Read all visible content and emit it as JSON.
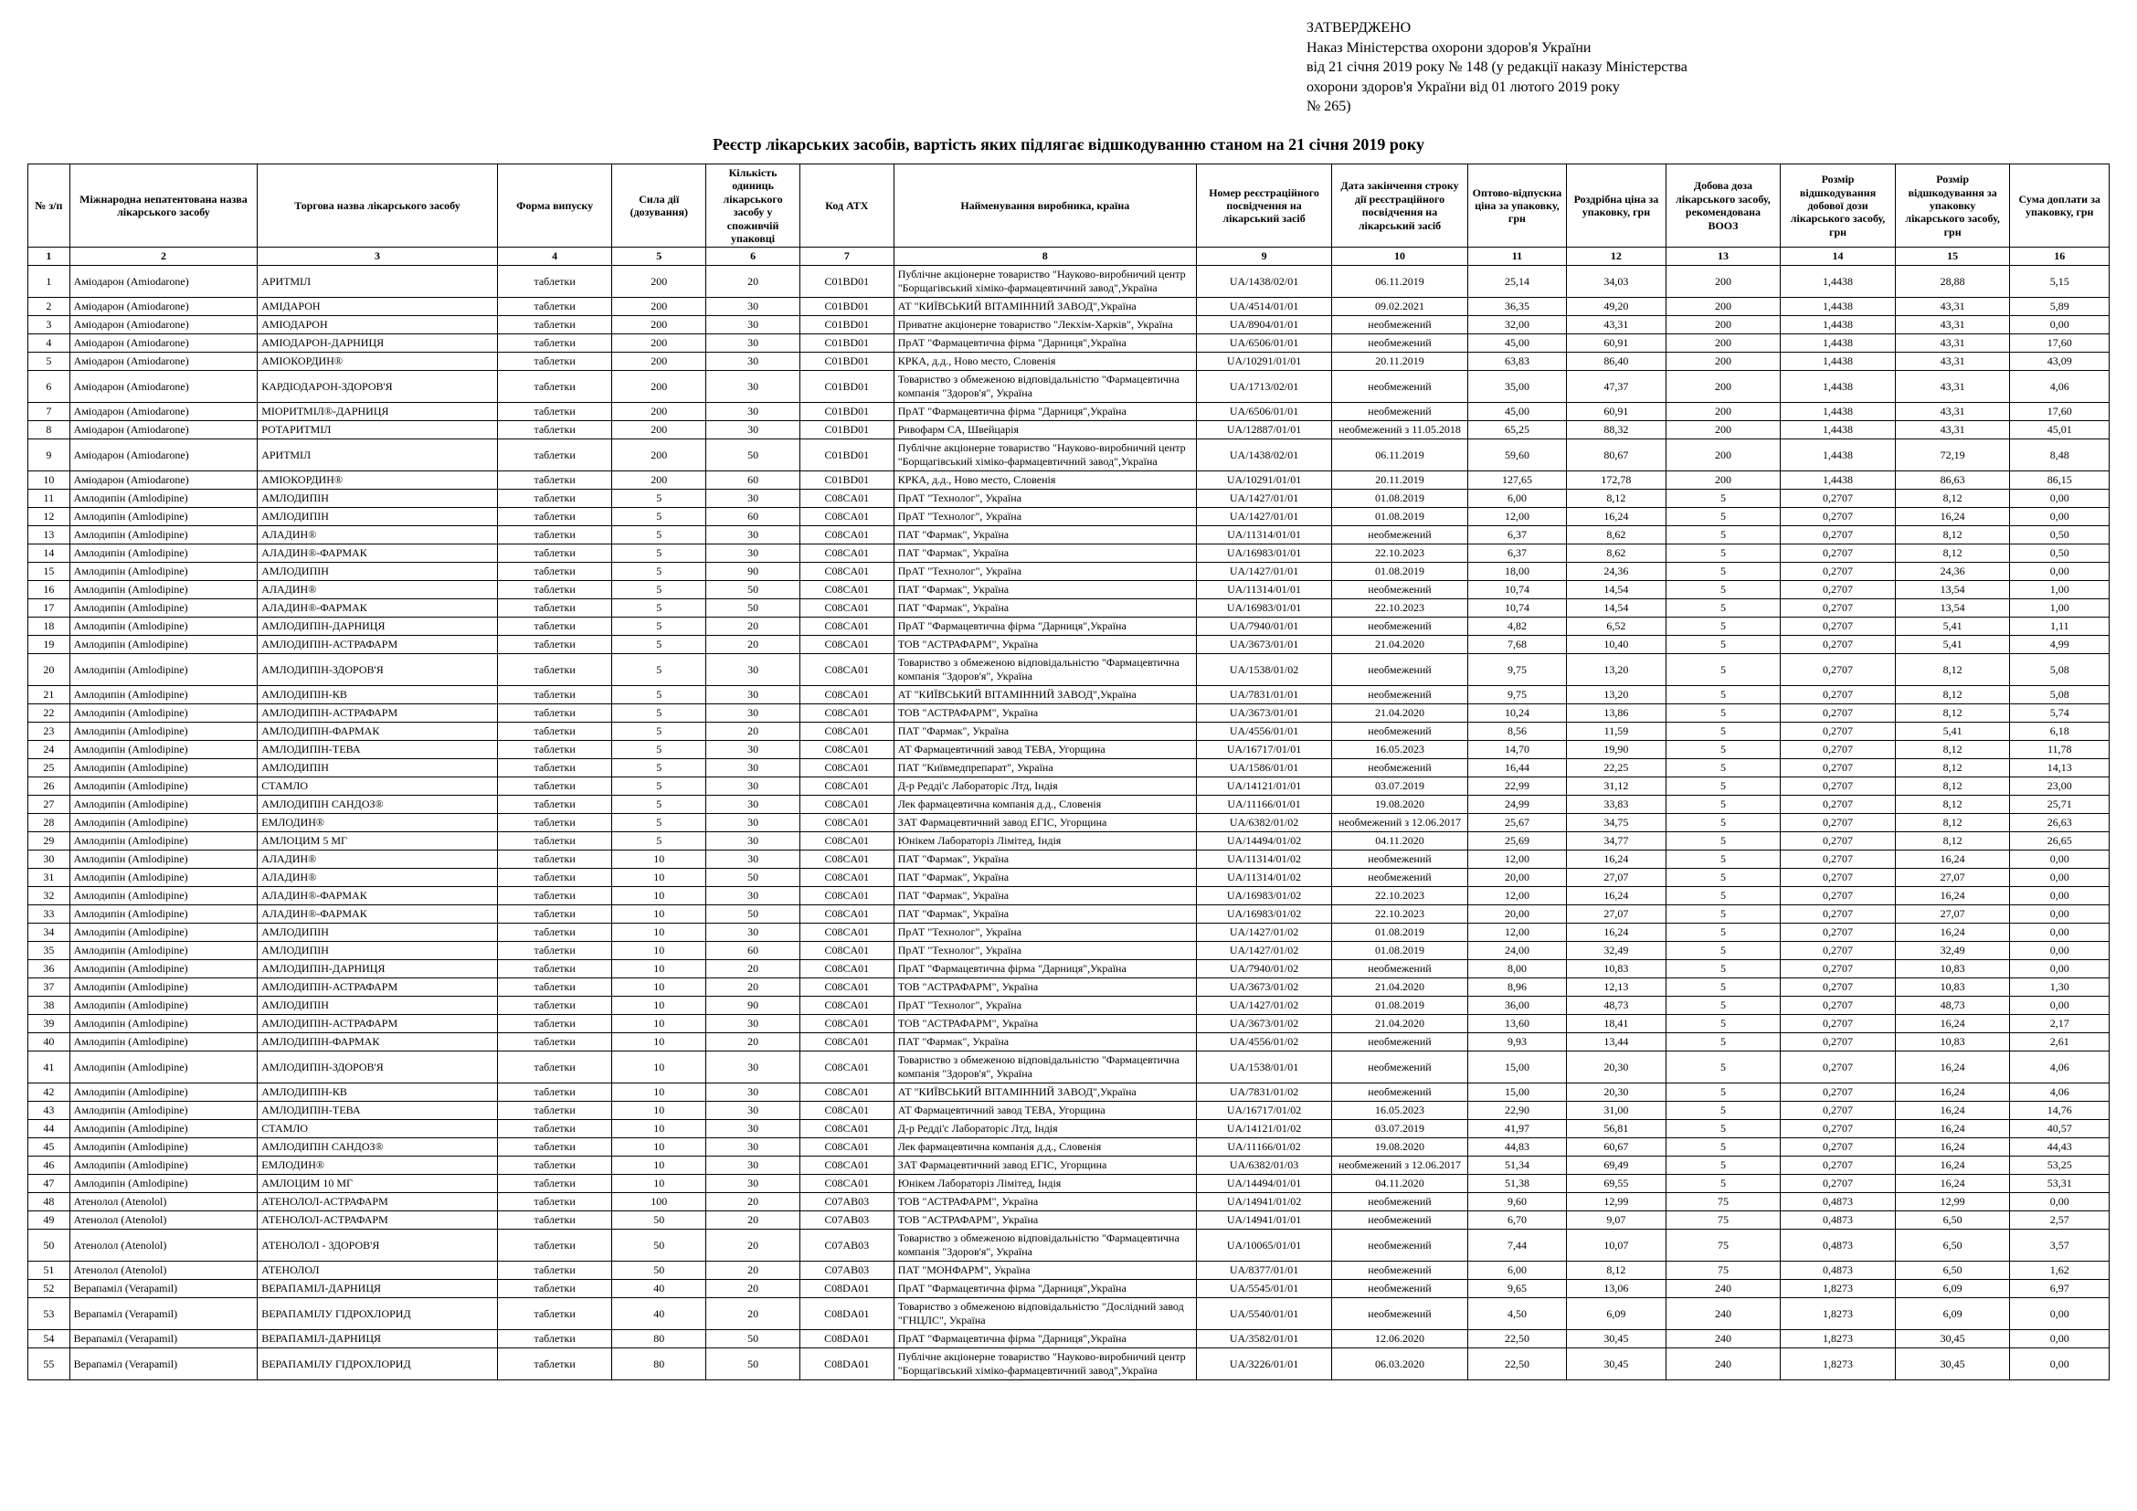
{
  "approval": {
    "approved": "ЗАТВЕРДЖЕНО",
    "line1": "Наказ Міністерства охорони здоров'я України",
    "line2": "від 21 січня 2019 року № 148 (у редакції наказу Міністерства",
    "line3": "охорони здоров'я України від 01 лютого 2019 року",
    "line4": "№ 265)"
  },
  "title": "Реєстр лікарських засобів, вартість яких підлягає відшкодуванню станом на 21 січня 2019 року",
  "headers": [
    "№ з/п",
    "Міжнародна непатентована назва лікарського засобу",
    "Торгова назва лікарського засобу",
    "Форма випуску",
    "Сила дії (дозування)",
    "Кількість одиниць лікарського засобу у споживчій упаковці",
    "Код АТХ",
    "Найменування виробника, країна",
    "Номер реєстраційного посвідчення на лікарський засіб",
    "Дата закінчення строку дії реєстраційного посвідчення на лікарський засіб",
    "Оптово-відпускна ціна за упаковку, грн",
    "Роздрібна ціна за упаковку, грн",
    "Добова доза лікарського засобу, рекомендована ВООЗ",
    "Розмір відшкодування добової дози лікарського засобу, грн",
    "Розмір відшкодування за упаковку лікарського засобу, грн",
    "Сума доплати за упаковку, грн"
  ],
  "colnums": [
    "1",
    "2",
    "3",
    "4",
    "5",
    "6",
    "7",
    "8",
    "9",
    "10",
    "11",
    "12",
    "13",
    "14",
    "15",
    "16"
  ],
  "rows": [
    [
      "1",
      "Аміодарон (Amiodarone)",
      "АРИТМІЛ",
      "таблетки",
      "200",
      "20",
      "C01BD01",
      "Публічне акціонерне товариство \"Науково-виробничий центр \"Борщагівський хіміко-фармацевтичний завод\",Україна",
      "UA/1438/02/01",
      "06.11.2019",
      "25,14",
      "34,03",
      "200",
      "1,4438",
      "28,88",
      "5,15"
    ],
    [
      "2",
      "Аміодарон (Amiodarone)",
      "АМІДАРОН",
      "таблетки",
      "200",
      "30",
      "C01BD01",
      "АТ \"КИЇВСЬКИЙ ВІТАМІННИЙ ЗАВОД\",Україна",
      "UA/4514/01/01",
      "09.02.2021",
      "36,35",
      "49,20",
      "200",
      "1,4438",
      "43,31",
      "5,89"
    ],
    [
      "3",
      "Аміодарон (Amiodarone)",
      "АМІОДАРОН",
      "таблетки",
      "200",
      "30",
      "C01BD01",
      "Приватне акціонерне товариство \"Лекхім-Харків\", Україна",
      "UA/8904/01/01",
      "необмежений",
      "32,00",
      "43,31",
      "200",
      "1,4438",
      "43,31",
      "0,00"
    ],
    [
      "4",
      "Аміодарон (Amiodarone)",
      "АМІОДАРОН-ДАРНИЦЯ",
      "таблетки",
      "200",
      "30",
      "C01BD01",
      "ПрАТ \"Фармацевтична фірма \"Дарниця\",Україна",
      "UA/6506/01/01",
      "необмежений",
      "45,00",
      "60,91",
      "200",
      "1,4438",
      "43,31",
      "17,60"
    ],
    [
      "5",
      "Аміодарон (Amiodarone)",
      "АМІОКОРДИН®",
      "таблетки",
      "200",
      "30",
      "C01BD01",
      "КРКА, д.д., Ново место, Словенія",
      "UA/10291/01/01",
      "20.11.2019",
      "63,83",
      "86,40",
      "200",
      "1,4438",
      "43,31",
      "43,09"
    ],
    [
      "6",
      "Аміодарон (Amiodarone)",
      "КАРДІОДАРОН-ЗДОРОВ'Я",
      "таблетки",
      "200",
      "30",
      "C01BD01",
      "Товариство з обмеженою відповідальністю \"Фармацевтична компанія \"Здоров'я\", Україна",
      "UA/1713/02/01",
      "необмежений",
      "35,00",
      "47,37",
      "200",
      "1,4438",
      "43,31",
      "4,06"
    ],
    [
      "7",
      "Аміодарон (Amiodarone)",
      "МІОРИТМІЛ®-ДАРНИЦЯ",
      "таблетки",
      "200",
      "30",
      "C01BD01",
      "ПрАТ \"Фармацевтична фірма \"Дарниця\",Україна",
      "UA/6506/01/01",
      "необмежений",
      "45,00",
      "60,91",
      "200",
      "1,4438",
      "43,31",
      "17,60"
    ],
    [
      "8",
      "Аміодарон (Amiodarone)",
      "РОТАРИТМІЛ",
      "таблетки",
      "200",
      "30",
      "C01BD01",
      "Ривофарм СА, Швейцарія",
      "UA/12887/01/01",
      "необмежений з 11.05.2018",
      "65,25",
      "88,32",
      "200",
      "1,4438",
      "43,31",
      "45,01"
    ],
    [
      "9",
      "Аміодарон (Amiodarone)",
      "АРИТМІЛ",
      "таблетки",
      "200",
      "50",
      "C01BD01",
      "Публічне акціонерне товариство \"Науково-виробничий центр \"Борщагівський хіміко-фармацевтичний завод\",Україна",
      "UA/1438/02/01",
      "06.11.2019",
      "59,60",
      "80,67",
      "200",
      "1,4438",
      "72,19",
      "8,48"
    ],
    [
      "10",
      "Аміодарон (Amiodarone)",
      "АМІОКОРДИН®",
      "таблетки",
      "200",
      "60",
      "C01BD01",
      "КРКА, д.д., Ново место, Словенія",
      "UA/10291/01/01",
      "20.11.2019",
      "127,65",
      "172,78",
      "200",
      "1,4438",
      "86,63",
      "86,15"
    ],
    [
      "11",
      "Амлодипін (Amlodipine)",
      "АМЛОДИПІН",
      "таблетки",
      "5",
      "30",
      "C08CA01",
      "ПрАТ \"Технолог\", Україна",
      "UA/1427/01/01",
      "01.08.2019",
      "6,00",
      "8,12",
      "5",
      "0,2707",
      "8,12",
      "0,00"
    ],
    [
      "12",
      "Амлодипін (Amlodipine)",
      "АМЛОДИПІН",
      "таблетки",
      "5",
      "60",
      "C08CA01",
      "ПрАТ \"Технолог\", Україна",
      "UA/1427/01/01",
      "01.08.2019",
      "12,00",
      "16,24",
      "5",
      "0,2707",
      "16,24",
      "0,00"
    ],
    [
      "13",
      "Амлодипін (Amlodipine)",
      "АЛАДИН®",
      "таблетки",
      "5",
      "30",
      "C08CA01",
      "ПАТ \"Фармак\", Україна",
      "UA/11314/01/01",
      "необмежений",
      "6,37",
      "8,62",
      "5",
      "0,2707",
      "8,12",
      "0,50"
    ],
    [
      "14",
      "Амлодипін (Amlodipine)",
      "АЛАДИН®-ФАРМАК",
      "таблетки",
      "5",
      "30",
      "C08CA01",
      "ПАТ \"Фармак\", Україна",
      "UA/16983/01/01",
      "22.10.2023",
      "6,37",
      "8,62",
      "5",
      "0,2707",
      "8,12",
      "0,50"
    ],
    [
      "15",
      "Амлодипін (Amlodipine)",
      "АМЛОДИПІН",
      "таблетки",
      "5",
      "90",
      "C08CA01",
      "ПрАТ \"Технолог\", Україна",
      "UA/1427/01/01",
      "01.08.2019",
      "18,00",
      "24,36",
      "5",
      "0,2707",
      "24,36",
      "0,00"
    ],
    [
      "16",
      "Амлодипін (Amlodipine)",
      "АЛАДИН®",
      "таблетки",
      "5",
      "50",
      "C08CA01",
      "ПАТ \"Фармак\", Україна",
      "UA/11314/01/01",
      "необмежений",
      "10,74",
      "14,54",
      "5",
      "0,2707",
      "13,54",
      "1,00"
    ],
    [
      "17",
      "Амлодипін (Amlodipine)",
      "АЛАДИН®-ФАРМАК",
      "таблетки",
      "5",
      "50",
      "C08CA01",
      "ПАТ \"Фармак\", Україна",
      "UA/16983/01/01",
      "22.10.2023",
      "10,74",
      "14,54",
      "5",
      "0,2707",
      "13,54",
      "1,00"
    ],
    [
      "18",
      "Амлодипін (Amlodipine)",
      "АМЛОДИПІН-ДАРНИЦЯ",
      "таблетки",
      "5",
      "20",
      "C08CA01",
      "ПрАТ \"Фармацевтична фірма \"Дарниця\",Україна",
      "UA/7940/01/01",
      "необмежений",
      "4,82",
      "6,52",
      "5",
      "0,2707",
      "5,41",
      "1,11"
    ],
    [
      "19",
      "Амлодипін (Amlodipine)",
      "АМЛОДИПІН-АСТРАФАРМ",
      "таблетки",
      "5",
      "20",
      "C08CA01",
      "ТОВ \"АСТРАФАРМ\", Україна",
      "UA/3673/01/01",
      "21.04.2020",
      "7,68",
      "10,40",
      "5",
      "0,2707",
      "5,41",
      "4,99"
    ],
    [
      "20",
      "Амлодипін (Amlodipine)",
      "АМЛОДИПІН-ЗДОРОВ'Я",
      "таблетки",
      "5",
      "30",
      "C08CA01",
      "Товариство з обмеженою відповідальністю \"Фармацевтична компанія \"Здоров'я\", Україна",
      "UA/1538/01/02",
      "необмежений",
      "9,75",
      "13,20",
      "5",
      "0,2707",
      "8,12",
      "5,08"
    ],
    [
      "21",
      "Амлодипін (Amlodipine)",
      "АМЛОДИПІН-КВ",
      "таблетки",
      "5",
      "30",
      "C08CA01",
      "АТ \"КИЇВСЬКИЙ ВІТАМІННИЙ ЗАВОД\",Україна",
      "UA/7831/01/01",
      "необмежений",
      "9,75",
      "13,20",
      "5",
      "0,2707",
      "8,12",
      "5,08"
    ],
    [
      "22",
      "Амлодипін (Amlodipine)",
      "АМЛОДИПІН-АСТРАФАРМ",
      "таблетки",
      "5",
      "30",
      "C08CA01",
      "ТОВ \"АСТРАФАРМ\", Україна",
      "UA/3673/01/01",
      "21.04.2020",
      "10,24",
      "13,86",
      "5",
      "0,2707",
      "8,12",
      "5,74"
    ],
    [
      "23",
      "Амлодипін (Amlodipine)",
      "АМЛОДИПІН-ФАРМАК",
      "таблетки",
      "5",
      "20",
      "C08CA01",
      "ПАТ \"Фармак\", Україна",
      "UA/4556/01/01",
      "необмежений",
      "8,56",
      "11,59",
      "5",
      "0,2707",
      "5,41",
      "6,18"
    ],
    [
      "24",
      "Амлодипін (Amlodipine)",
      "АМЛОДИПІН-ТЕВА",
      "таблетки",
      "5",
      "30",
      "C08CA01",
      "АТ Фармацевтичний завод ТЕВА, Угорщина",
      "UA/16717/01/01",
      "16.05.2023",
      "14,70",
      "19,90",
      "5",
      "0,2707",
      "8,12",
      "11,78"
    ],
    [
      "25",
      "Амлодипін (Amlodipine)",
      "АМЛОДИПІН",
      "таблетки",
      "5",
      "30",
      "C08CA01",
      "ПАТ \"Київмедпрепарат\", Україна",
      "UA/1586/01/01",
      "необмежений",
      "16,44",
      "22,25",
      "5",
      "0,2707",
      "8,12",
      "14,13"
    ],
    [
      "26",
      "Амлодипін (Amlodipine)",
      "СТАМЛО",
      "таблетки",
      "5",
      "30",
      "C08CA01",
      "Д-р Редді'с Лабораторіс Лтд, Індія",
      "UA/14121/01/01",
      "03.07.2019",
      "22,99",
      "31,12",
      "5",
      "0,2707",
      "8,12",
      "23,00"
    ],
    [
      "27",
      "Амлодипін (Amlodipine)",
      "АМЛОДИПІН САНДОЗ®",
      "таблетки",
      "5",
      "30",
      "C08CA01",
      "Лек фармацевтична компанія д.д., Словенія",
      "UA/11166/01/01",
      "19.08.2020",
      "24,99",
      "33,83",
      "5",
      "0,2707",
      "8,12",
      "25,71"
    ],
    [
      "28",
      "Амлодипін (Amlodipine)",
      "ЕМЛОДИН®",
      "таблетки",
      "5",
      "30",
      "C08CA01",
      "ЗАТ Фармацевтичний завод ЕГІС, Угорщина",
      "UA/6382/01/02",
      "необмежений з 12.06.2017",
      "25,67",
      "34,75",
      "5",
      "0,2707",
      "8,12",
      "26,63"
    ],
    [
      "29",
      "Амлодипін (Amlodipine)",
      "АМЛОЦИМ 5 МГ",
      "таблетки",
      "5",
      "30",
      "C08CA01",
      "Юнікем Лабораторіз Лімітед, Індія",
      "UA/14494/01/02",
      "04.11.2020",
      "25,69",
      "34,77",
      "5",
      "0,2707",
      "8,12",
      "26,65"
    ],
    [
      "30",
      "Амлодипін (Amlodipine)",
      "АЛАДИН®",
      "таблетки",
      "10",
      "30",
      "C08CA01",
      "ПАТ \"Фармак\", Україна",
      "UA/11314/01/02",
      "необмежений",
      "12,00",
      "16,24",
      "5",
      "0,2707",
      "16,24",
      "0,00"
    ],
    [
      "31",
      "Амлодипін (Amlodipine)",
      "АЛАДИН®",
      "таблетки",
      "10",
      "50",
      "C08CA01",
      "ПАТ \"Фармак\", Україна",
      "UA/11314/01/02",
      "необмежений",
      "20,00",
      "27,07",
      "5",
      "0,2707",
      "27,07",
      "0,00"
    ],
    [
      "32",
      "Амлодипін (Amlodipine)",
      "АЛАДИН®-ФАРМАК",
      "таблетки",
      "10",
      "30",
      "C08CA01",
      "ПАТ \"Фармак\", Україна",
      "UA/16983/01/02",
      "22.10.2023",
      "12,00",
      "16,24",
      "5",
      "0,2707",
      "16,24",
      "0,00"
    ],
    [
      "33",
      "Амлодипін (Amlodipine)",
      "АЛАДИН®-ФАРМАК",
      "таблетки",
      "10",
      "50",
      "C08CA01",
      "ПАТ \"Фармак\", Україна",
      "UA/16983/01/02",
      "22.10.2023",
      "20,00",
      "27,07",
      "5",
      "0,2707",
      "27,07",
      "0,00"
    ],
    [
      "34",
      "Амлодипін (Amlodipine)",
      "АМЛОДИПІН",
      "таблетки",
      "10",
      "30",
      "C08CA01",
      "ПрАТ \"Технолог\", Україна",
      "UA/1427/01/02",
      "01.08.2019",
      "12,00",
      "16,24",
      "5",
      "0,2707",
      "16,24",
      "0,00"
    ],
    [
      "35",
      "Амлодипін (Amlodipine)",
      "АМЛОДИПІН",
      "таблетки",
      "10",
      "60",
      "C08CA01",
      "ПрАТ \"Технолог\", Україна",
      "UA/1427/01/02",
      "01.08.2019",
      "24,00",
      "32,49",
      "5",
      "0,2707",
      "32,49",
      "0,00"
    ],
    [
      "36",
      "Амлодипін (Amlodipine)",
      "АМЛОДИПІН-ДАРНИЦЯ",
      "таблетки",
      "10",
      "20",
      "C08CA01",
      "ПрАТ \"Фармацевтична фірма \"Дарниця\",Україна",
      "UA/7940/01/02",
      "необмежений",
      "8,00",
      "10,83",
      "5",
      "0,2707",
      "10,83",
      "0,00"
    ],
    [
      "37",
      "Амлодипін (Amlodipine)",
      "АМЛОДИПІН-АСТРАФАРМ",
      "таблетки",
      "10",
      "20",
      "C08CA01",
      "ТОВ \"АСТРАФАРМ\", Україна",
      "UA/3673/01/02",
      "21.04.2020",
      "8,96",
      "12,13",
      "5",
      "0,2707",
      "10,83",
      "1,30"
    ],
    [
      "38",
      "Амлодипін (Amlodipine)",
      "АМЛОДИПІН",
      "таблетки",
      "10",
      "90",
      "C08CA01",
      "ПрАТ \"Технолог\", Україна",
      "UA/1427/01/02",
      "01.08.2019",
      "36,00",
      "48,73",
      "5",
      "0,2707",
      "48,73",
      "0,00"
    ],
    [
      "39",
      "Амлодипін (Amlodipine)",
      "АМЛОДИПІН-АСТРАФАРМ",
      "таблетки",
      "10",
      "30",
      "C08CA01",
      "ТОВ \"АСТРАФАРМ\", Україна",
      "UA/3673/01/02",
      "21.04.2020",
      "13,60",
      "18,41",
      "5",
      "0,2707",
      "16,24",
      "2,17"
    ],
    [
      "40",
      "Амлодипін (Amlodipine)",
      "АМЛОДИПІН-ФАРМАК",
      "таблетки",
      "10",
      "20",
      "C08CA01",
      "ПАТ \"Фармак\", Україна",
      "UA/4556/01/02",
      "необмежений",
      "9,93",
      "13,44",
      "5",
      "0,2707",
      "10,83",
      "2,61"
    ],
    [
      "41",
      "Амлодипін (Amlodipine)",
      "АМЛОДИПІН-ЗДОРОВ'Я",
      "таблетки",
      "10",
      "30",
      "C08CA01",
      "Товариство з обмеженою відповідальністю \"Фармацевтична компанія \"Здоров'я\", Україна",
      "UA/1538/01/01",
      "необмежений",
      "15,00",
      "20,30",
      "5",
      "0,2707",
      "16,24",
      "4,06"
    ],
    [
      "42",
      "Амлодипін (Amlodipine)",
      "АМЛОДИПІН-КВ",
      "таблетки",
      "10",
      "30",
      "C08CA01",
      "АТ \"КИЇВСЬКИЙ ВІТАМІННИЙ ЗАВОД\",Україна",
      "UA/7831/01/02",
      "необмежений",
      "15,00",
      "20,30",
      "5",
      "0,2707",
      "16,24",
      "4,06"
    ],
    [
      "43",
      "Амлодипін (Amlodipine)",
      "АМЛОДИПІН-ТЕВА",
      "таблетки",
      "10",
      "30",
      "C08CA01",
      "АТ Фармацевтичний завод ТЕВА, Угорщина",
      "UA/16717/01/02",
      "16.05.2023",
      "22,90",
      "31,00",
      "5",
      "0,2707",
      "16,24",
      "14,76"
    ],
    [
      "44",
      "Амлодипін (Amlodipine)",
      "СТАМЛО",
      "таблетки",
      "10",
      "30",
      "C08CA01",
      "Д-р Редді'с Лабораторіс Лтд, Індія",
      "UA/14121/01/02",
      "03.07.2019",
      "41,97",
      "56,81",
      "5",
      "0,2707",
      "16,24",
      "40,57"
    ],
    [
      "45",
      "Амлодипін (Amlodipine)",
      "АМЛОДИПІН САНДОЗ®",
      "таблетки",
      "10",
      "30",
      "C08CA01",
      "Лек фармацевтична компанія д.д., Словенія",
      "UA/11166/01/02",
      "19.08.2020",
      "44,83",
      "60,67",
      "5",
      "0,2707",
      "16,24",
      "44,43"
    ],
    [
      "46",
      "Амлодипін (Amlodipine)",
      "ЕМЛОДИН®",
      "таблетки",
      "10",
      "30",
      "C08CA01",
      "ЗАТ Фармацевтичний завод ЕГІС, Угорщина",
      "UA/6382/01/03",
      "необмежений з 12.06.2017",
      "51,34",
      "69,49",
      "5",
      "0,2707",
      "16,24",
      "53,25"
    ],
    [
      "47",
      "Амлодипін (Amlodipine)",
      "АМЛОЦИМ 10 МГ",
      "таблетки",
      "10",
      "30",
      "C08CA01",
      "Юнікем Лабораторіз Лімітед, Індія",
      "UA/14494/01/01",
      "04.11.2020",
      "51,38",
      "69,55",
      "5",
      "0,2707",
      "16,24",
      "53,31"
    ],
    [
      "48",
      "Атенолол (Atenolol)",
      "АТЕНОЛОЛ-АСТРАФАРМ",
      "таблетки",
      "100",
      "20",
      "C07AB03",
      "ТОВ \"АСТРАФАРМ\", Україна",
      "UA/14941/01/02",
      "необмежений",
      "9,60",
      "12,99",
      "75",
      "0,4873",
      "12,99",
      "0,00"
    ],
    [
      "49",
      "Атенолол (Atenolol)",
      "АТЕНОЛОЛ-АСТРАФАРМ",
      "таблетки",
      "50",
      "20",
      "C07AB03",
      "ТОВ \"АСТРАФАРМ\", Україна",
      "UA/14941/01/01",
      "необмежений",
      "6,70",
      "9,07",
      "75",
      "0,4873",
      "6,50",
      "2,57"
    ],
    [
      "50",
      "Атенолол (Atenolol)",
      "АТЕНОЛОЛ - ЗДОРОВ'Я",
      "таблетки",
      "50",
      "20",
      "C07AB03",
      "Товариство з обмеженою відповідальністю \"Фармацевтична компанія \"Здоров'я\", Україна",
      "UA/10065/01/01",
      "необмежений",
      "7,44",
      "10,07",
      "75",
      "0,4873",
      "6,50",
      "3,57"
    ],
    [
      "51",
      "Атенолол (Atenolol)",
      "АТЕНОЛОЛ",
      "таблетки",
      "50",
      "20",
      "C07AB03",
      "ПАТ \"МОНФАРМ\", Україна",
      "UA/8377/01/01",
      "необмежений",
      "6,00",
      "8,12",
      "75",
      "0,4873",
      "6,50",
      "1,62"
    ],
    [
      "52",
      "Верапаміл (Verapamil)",
      "ВЕРАПАМІЛ-ДАРНИЦЯ",
      "таблетки",
      "40",
      "20",
      "C08DA01",
      "ПрАТ \"Фармацевтична фірма \"Дарниця\",Україна",
      "UA/5545/01/01",
      "необмежений",
      "9,65",
      "13,06",
      "240",
      "1,8273",
      "6,09",
      "6,97"
    ],
    [
      "53",
      "Верапаміл (Verapamil)",
      "ВЕРАПАМІЛУ ГІДРОХЛОРИД",
      "таблетки",
      "40",
      "20",
      "C08DA01",
      "Товариство з обмеженою відповідальністю \"Дослідний завод \"ГНЦЛС\", Україна",
      "UA/5540/01/01",
      "необмежений",
      "4,50",
      "6,09",
      "240",
      "1,8273",
      "6,09",
      "0,00"
    ],
    [
      "54",
      "Верапаміл (Verapamil)",
      "ВЕРАПАМІЛ-ДАРНИЦЯ",
      "таблетки",
      "80",
      "50",
      "C08DA01",
      "ПрАТ \"Фармацевтична фірма \"Дарниця\",Україна",
      "UA/3582/01/01",
      "12.06.2020",
      "22,50",
      "30,45",
      "240",
      "1,8273",
      "30,45",
      "0,00"
    ],
    [
      "55",
      "Верапаміл (Verapamil)",
      "ВЕРАПАМІЛУ ГІДРОХЛОРИД",
      "таблетки",
      "80",
      "50",
      "C08DA01",
      "Публічне акціонерне товариство \"Науково-виробничий центр \"Борщагівський хіміко-фармацевтичний завод\",Україна",
      "UA/3226/01/01",
      "06.03.2020",
      "22,50",
      "30,45",
      "240",
      "1,8273",
      "30,45",
      "0,00"
    ]
  ]
}
